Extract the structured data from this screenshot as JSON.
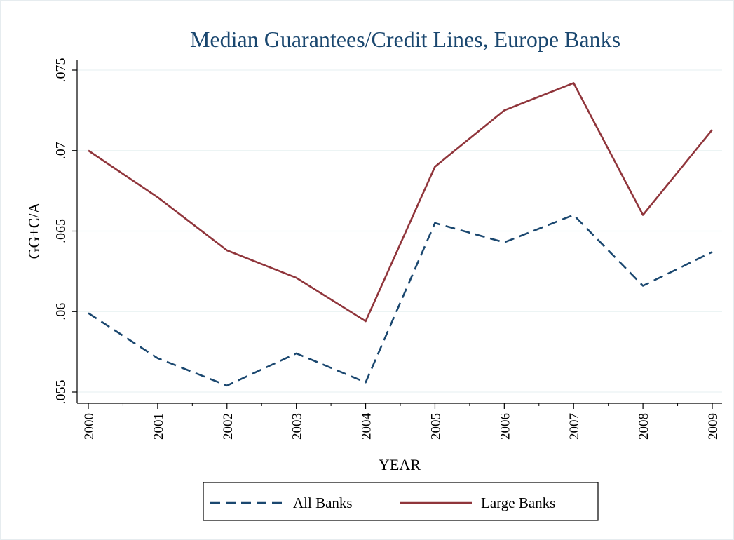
{
  "chart_data": {
    "type": "line",
    "title": "Median Guarantees/Credit Lines, Europe Banks",
    "xlabel": "YEAR",
    "ylabel": "GG+C/A",
    "categories": [
      "2000",
      "2001",
      "2002",
      "2003",
      "2004",
      "2005",
      "2006",
      "2007",
      "2008",
      "2009"
    ],
    "yticks": [
      ".055",
      ".06",
      ".065",
      ".07",
      ".075"
    ],
    "ylim": [
      0.0545,
      0.076
    ],
    "grid": true,
    "legend_position": "bottom",
    "series": [
      {
        "name": "All Banks",
        "style": "dashed",
        "color": "#1a476f",
        "values": [
          0.0599,
          0.0571,
          0.0554,
          0.0574,
          0.0556,
          0.0655,
          0.0643,
          0.066,
          0.0616,
          0.0637
        ]
      },
      {
        "name": "Large Banks",
        "style": "solid",
        "color": "#90353b",
        "values": [
          0.07,
          0.0671,
          0.0638,
          0.0621,
          0.0594,
          0.069,
          0.0725,
          0.0742,
          0.066,
          0.0713
        ]
      }
    ]
  }
}
